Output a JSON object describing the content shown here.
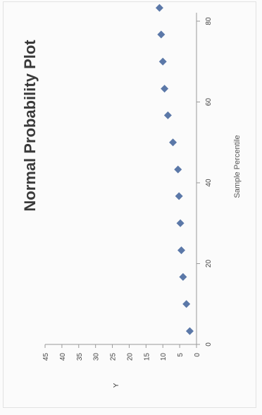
{
  "chart_data": {
    "type": "scatter",
    "title": "Normal Probability Plot",
    "xlabel": "Sample Percentile",
    "ylabel": "Y",
    "x_ticks": [
      "0",
      "20",
      "40",
      "60",
      "80"
    ],
    "y_ticks": [
      "0",
      "5",
      "10",
      "15",
      "20",
      "25",
      "30",
      "35",
      "40",
      "45"
    ],
    "xlim": [
      0,
      100
    ],
    "ylim": [
      0,
      45
    ],
    "grid": false,
    "legend": "none",
    "marker": "diamond",
    "color": "#5b78a8",
    "series": [
      {
        "x": [
          3.3,
          10,
          16.7,
          23.3,
          30,
          36.7,
          43.3,
          50,
          56.7,
          63.3,
          70,
          76.7,
          83.3
        ],
        "y": [
          2,
          3,
          4,
          4.5,
          4.8,
          5.2,
          5.5,
          7,
          8.5,
          9.5,
          10,
          10.5,
          11
        ]
      }
    ]
  }
}
